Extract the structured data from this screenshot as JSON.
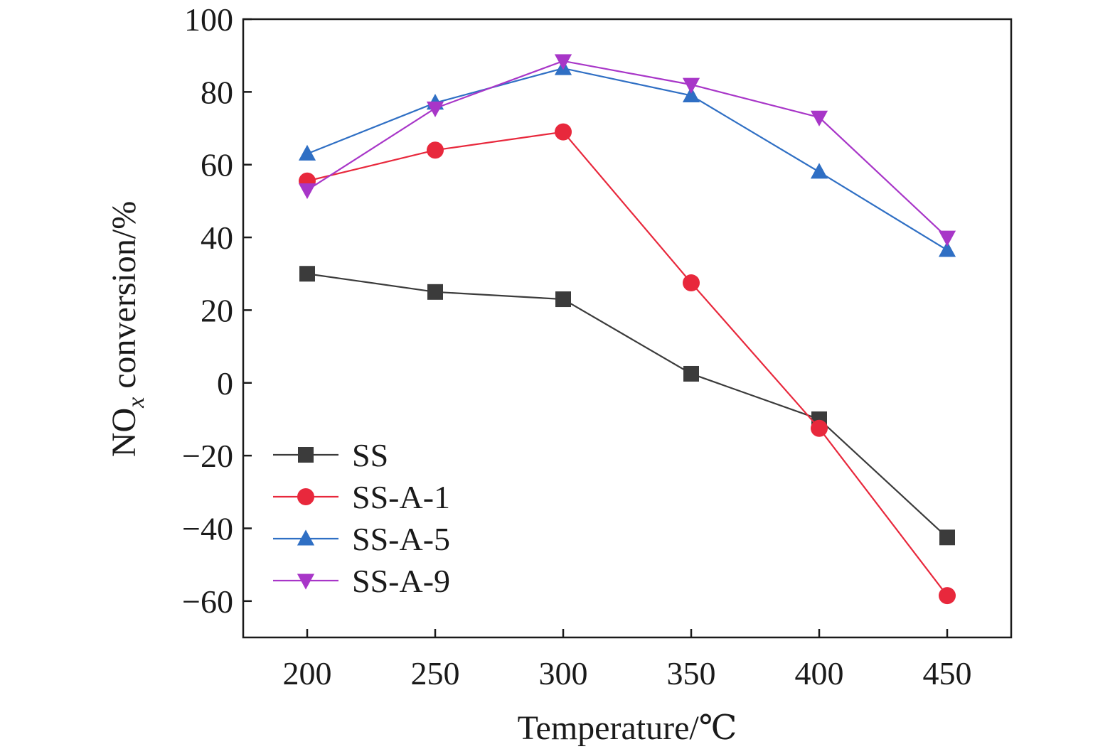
{
  "chart_data": {
    "type": "line",
    "x": [
      200,
      250,
      300,
      350,
      400,
      450
    ],
    "xlim": [
      175,
      475
    ],
    "ylim": [
      -70,
      100
    ],
    "xticks": [
      200,
      250,
      300,
      350,
      400,
      450
    ],
    "yticks": [
      100,
      80,
      60,
      40,
      20,
      0,
      -20,
      -40,
      -60
    ],
    "ytick_labels": [
      "100",
      "80",
      "60",
      "40",
      "20",
      "0",
      "−20",
      "−40",
      "−60"
    ],
    "xlabel": "Temperature/℃",
    "ylabel_main": "NO",
    "ylabel_sub": "x",
    "ylabel_rest": " conversion/%",
    "grid": false,
    "legend_position": "lower-left",
    "series": [
      {
        "name": "SS",
        "color": "#3b3b3b",
        "marker": "square",
        "values": [
          30,
          25,
          23,
          2.5,
          -10,
          -42.5
        ]
      },
      {
        "name": "SS-A-1",
        "color": "#e8283c",
        "marker": "circle",
        "values": [
          55.5,
          64,
          69,
          27.5,
          -12.5,
          -58.5
        ]
      },
      {
        "name": "SS-A-5",
        "color": "#2f6fc4",
        "marker": "triangle-up",
        "values": [
          63,
          77,
          86.5,
          79,
          58,
          36.5
        ]
      },
      {
        "name": "SS-A-9",
        "color": "#a836c8",
        "marker": "triangle-down",
        "values": [
          53,
          75.5,
          88.5,
          82,
          73,
          40
        ]
      }
    ]
  }
}
